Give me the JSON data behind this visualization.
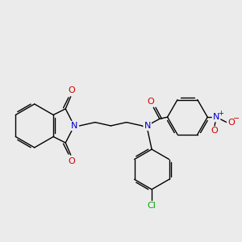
{
  "background_color": "#ebebeb",
  "bond_color": "#000000",
  "atom_colors": {
    "N": "#0000cc",
    "O": "#cc0000",
    "Cl": "#00aa00",
    "C": "#000000"
  },
  "figsize": [
    3.0,
    3.0
  ],
  "dpi": 100
}
